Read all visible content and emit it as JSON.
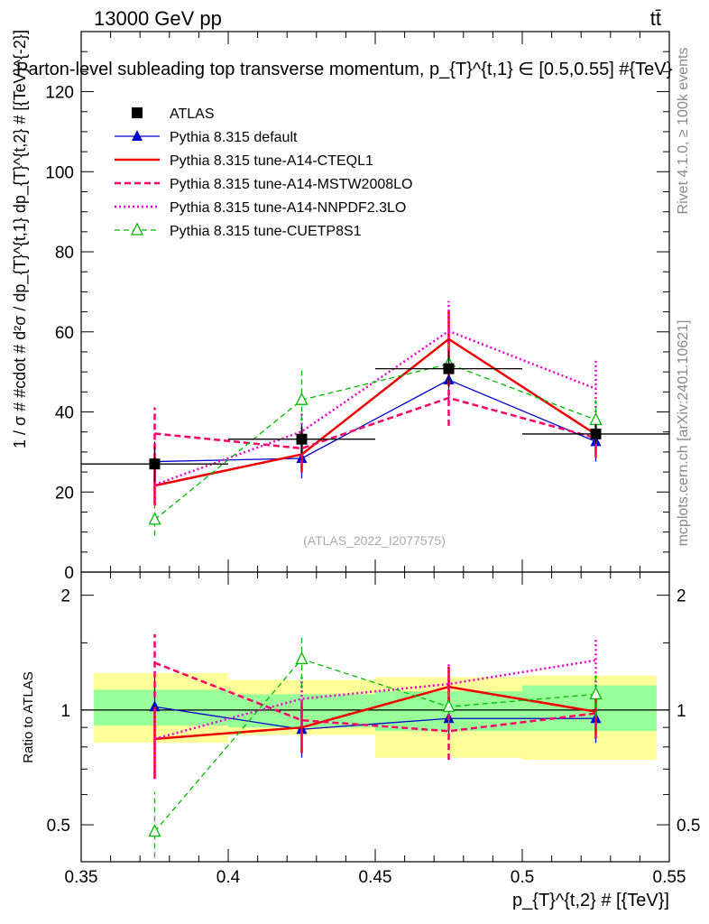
{
  "header": {
    "energy_label": "13000 GeV pp",
    "process_label": "tt̄"
  },
  "side_labels": {
    "rivet": "Rivet 4.1.0, ≥ 100k events",
    "mcplots": "mcplots.cern.ch [arXiv:2401.10621]"
  },
  "colors": {
    "atlas": "#000000",
    "default": "#0000cc",
    "cteql1": "#ee0000",
    "mstw": "#ff0066",
    "nnpdf": "#ee00cc",
    "cuetp": "#00bb00",
    "band_inner": "#99ff99",
    "band_outer": "#ffff99"
  },
  "chart_data": [
    {
      "type": "line",
      "panel": "main",
      "title": "Parton-level subleading top transverse momentum, p_{T}^{t,1} ∈ [0.5,0.55] #{TeV}",
      "watermark": "(ATLAS_2022_I2077575)",
      "ylabel": "1 / σ # #cdot # d²σ / dp_{T}^{t,1} dp_{T}^{t,2} # [{TeV}^{-2}]",
      "xlabel": "",
      "xlim": [
        0.35,
        0.55
      ],
      "ylim": [
        0,
        135
      ],
      "yticks": [
        0,
        20,
        40,
        60,
        80,
        100,
        120
      ],
      "x": [
        0.375,
        0.425,
        0.475,
        0.525
      ],
      "legend_placement": "top-left",
      "series": [
        {
          "name": "ATLAS",
          "key": "atlas",
          "values": [
            27.0,
            33.2,
            50.8,
            34.5
          ],
          "err": [
            4.5,
            3.5,
            4.5,
            2.5
          ],
          "xerr": 0.025
        },
        {
          "name": "Pythia 8.315 default",
          "key": "default",
          "values": [
            27.6,
            28.4,
            48.0,
            32.6
          ],
          "err": [
            5.0,
            5.0,
            5.0,
            5.0
          ]
        },
        {
          "name": "Pythia 8.315 tune-A14-CTEQL1",
          "key": "cteql1",
          "values": [
            21.6,
            29.4,
            58.2,
            34.4
          ],
          "err": [
            5.0,
            4.5,
            7.0,
            5.0
          ]
        },
        {
          "name": "Pythia 8.315 tune-A14-MSTW2008LO",
          "key": "mstw",
          "values": [
            34.6,
            30.9,
            43.5,
            33.5
          ],
          "err": [
            6.5,
            4.5,
            7.0,
            5.0
          ]
        },
        {
          "name": "Pythia 8.315 tune-A14-NNPDF2.3LO",
          "key": "nnpdf",
          "values": [
            21.8,
            35.1,
            60.2,
            45.8
          ],
          "err": [
            5.0,
            5.0,
            7.5,
            7.0
          ]
        },
        {
          "name": "Pythia 8.315 tune-CUETP8S1",
          "key": "cuetp",
          "values": [
            13.1,
            43.0,
            52.0,
            38.0
          ],
          "err": [
            4.0,
            7.5,
            5.0,
            5.0
          ]
        }
      ]
    },
    {
      "type": "line",
      "panel": "ratio",
      "ylabel": "Ratio to ATLAS",
      "xlabel": "p_{T}^{t,2} # [{TeV}]",
      "xlim": [
        0.35,
        0.55
      ],
      "ylim": [
        0.4,
        2.3
      ],
      "log_y": true,
      "yticks": [
        0.5,
        1,
        2
      ],
      "xticks": [
        0.35,
        0.4,
        0.45,
        0.5,
        0.55
      ],
      "x": [
        0.375,
        0.425,
        0.475,
        0.525
      ],
      "band_edges": [
        0.35,
        0.4,
        0.45,
        0.5,
        0.55
      ],
      "band_inner": [
        [
          0.91,
          1.13
        ],
        [
          0.9,
          1.1
        ],
        [
          0.88,
          1.12
        ],
        [
          0.88,
          1.16
        ]
      ],
      "band_outer": [
        [
          0.82,
          1.25
        ],
        [
          0.86,
          1.2
        ],
        [
          0.75,
          1.22
        ],
        [
          0.74,
          1.23
        ]
      ],
      "series": [
        {
          "name": "Pythia 8.315 default",
          "key": "default",
          "values": [
            1.02,
            0.89,
            0.95,
            0.95
          ],
          "err": [
            0.2,
            0.14,
            0.1,
            0.13
          ]
        },
        {
          "name": "Pythia 8.315 tune-A14-CTEQL1",
          "key": "cteql1",
          "values": [
            0.84,
            0.9,
            1.15,
            0.99
          ],
          "err": [
            0.18,
            0.13,
            0.15,
            0.14
          ]
        },
        {
          "name": "Pythia 8.315 tune-A14-MSTW2008LO",
          "key": "mstw",
          "values": [
            1.33,
            0.94,
            0.88,
            0.98
          ],
          "err": [
            0.25,
            0.14,
            0.14,
            0.14
          ]
        },
        {
          "name": "Pythia 8.315 tune-A14-NNPDF2.3LO",
          "key": "nnpdf",
          "values": [
            0.84,
            1.07,
            1.17,
            1.35
          ],
          "err": [
            0.18,
            0.15,
            0.15,
            0.2
          ]
        },
        {
          "name": "Pythia 8.315 tune-CUETP8S1",
          "key": "cuetp",
          "values": [
            0.48,
            1.36,
            1.02,
            1.1
          ],
          "err": [
            0.13,
            0.22,
            0.1,
            0.14
          ]
        }
      ]
    }
  ]
}
